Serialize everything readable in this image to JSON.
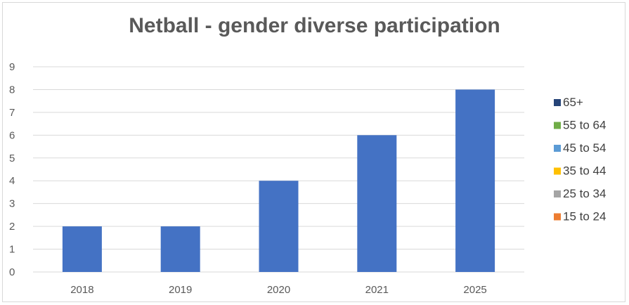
{
  "chart_data": {
    "type": "bar",
    "title": "Netball - gender diverse participation",
    "categories": [
      "2018",
      "2019",
      "2020",
      "2021",
      "2025"
    ],
    "series": [
      {
        "name": "15 to 24",
        "color": "#ed7d31",
        "values": [
          0,
          0,
          0,
          0,
          0
        ]
      },
      {
        "name": "25 to 34",
        "color": "#a5a5a5",
        "values": [
          0,
          0,
          0,
          0,
          0
        ]
      },
      {
        "name": "35 to 44",
        "color": "#ffc000",
        "values": [
          0,
          0,
          0,
          0,
          0
        ]
      },
      {
        "name": "45 to 54",
        "color": "#5b9bd5",
        "values": [
          0,
          0,
          0,
          0,
          0
        ]
      },
      {
        "name": "55 to 64",
        "color": "#70ad47",
        "values": [
          0,
          0,
          0,
          0,
          0
        ]
      },
      {
        "name": "65+",
        "color": "#264478",
        "values": [
          0,
          0,
          0,
          0,
          0
        ]
      }
    ],
    "values": [
      2,
      2,
      4,
      6,
      8
    ],
    "bar_color": "#4472c4",
    "ylim": [
      0,
      9
    ],
    "yticks": [
      "0",
      "1",
      "2",
      "3",
      "4",
      "5",
      "6",
      "7",
      "8",
      "9"
    ],
    "grid": true,
    "legend_position": "right",
    "legend_order": [
      "65+",
      "55 to 64",
      "45 to 54",
      "35 to 44",
      "25 to 34",
      "15 to 24"
    ],
    "xlabel": "",
    "ylabel": ""
  }
}
